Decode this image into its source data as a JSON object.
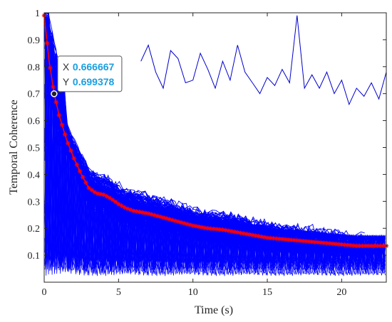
{
  "chart_data": {
    "type": "line",
    "title": "",
    "xlabel": "Time (s)",
    "ylabel": "Temporal Coherence",
    "xlim": [
      0,
      23
    ],
    "ylim": [
      0,
      1
    ],
    "xticks": [
      0,
      5,
      10,
      15,
      20
    ],
    "yticks": [
      0.1,
      0.2,
      0.3,
      0.4,
      0.5,
      0.6,
      0.7,
      0.8,
      0.9,
      1
    ],
    "grid": false,
    "legend": "none",
    "colors": {
      "traces": "#0000ff",
      "mean": "#ff0000",
      "outlier": "#0000cc",
      "datatip_value": "#1a9fe0"
    },
    "series": [
      {
        "style": "red-asterisk-line",
        "x": [
          0,
          0.33,
          0.67,
          1,
          1.5,
          2,
          2.5,
          3,
          3.5,
          4,
          4.5,
          5,
          5.5,
          6,
          7,
          8,
          9,
          10,
          11,
          12,
          13,
          14,
          15,
          16,
          17,
          18,
          19,
          20,
          21,
          22,
          23
        ],
        "y": [
          0.99,
          0.82,
          0.7,
          0.62,
          0.53,
          0.46,
          0.4,
          0.35,
          0.33,
          0.325,
          0.31,
          0.29,
          0.275,
          0.265,
          0.255,
          0.24,
          0.225,
          0.21,
          0.2,
          0.195,
          0.185,
          0.175,
          0.165,
          0.16,
          0.155,
          0.15,
          0.145,
          0.14,
          0.135,
          0.135,
          0.135
        ]
      },
      {
        "style": "blue-outlier-trace",
        "x": [
          6.5,
          7,
          7.5,
          8,
          8.5,
          9,
          9.5,
          10,
          10.5,
          11,
          11.5,
          12,
          12.5,
          13,
          13.5,
          14,
          14.5,
          15,
          15.5,
          16,
          16.5,
          17,
          17.5,
          18,
          18.5,
          19,
          19.5,
          20,
          20.5,
          21,
          21.5,
          22,
          22.5,
          23
        ],
        "y": [
          0.82,
          0.88,
          0.78,
          0.72,
          0.86,
          0.83,
          0.74,
          0.75,
          0.85,
          0.79,
          0.72,
          0.82,
          0.75,
          0.88,
          0.78,
          0.74,
          0.7,
          0.76,
          0.73,
          0.79,
          0.74,
          0.99,
          0.72,
          0.77,
          0.72,
          0.78,
          0.7,
          0.75,
          0.66,
          0.72,
          0.69,
          0.74,
          0.68,
          0.78
        ]
      }
    ],
    "datatip": {
      "x_key": "X",
      "x_value": "0.666667",
      "y_key": "Y",
      "y_value": "0.699378",
      "point": [
        0.666667,
        0.699378
      ]
    }
  }
}
